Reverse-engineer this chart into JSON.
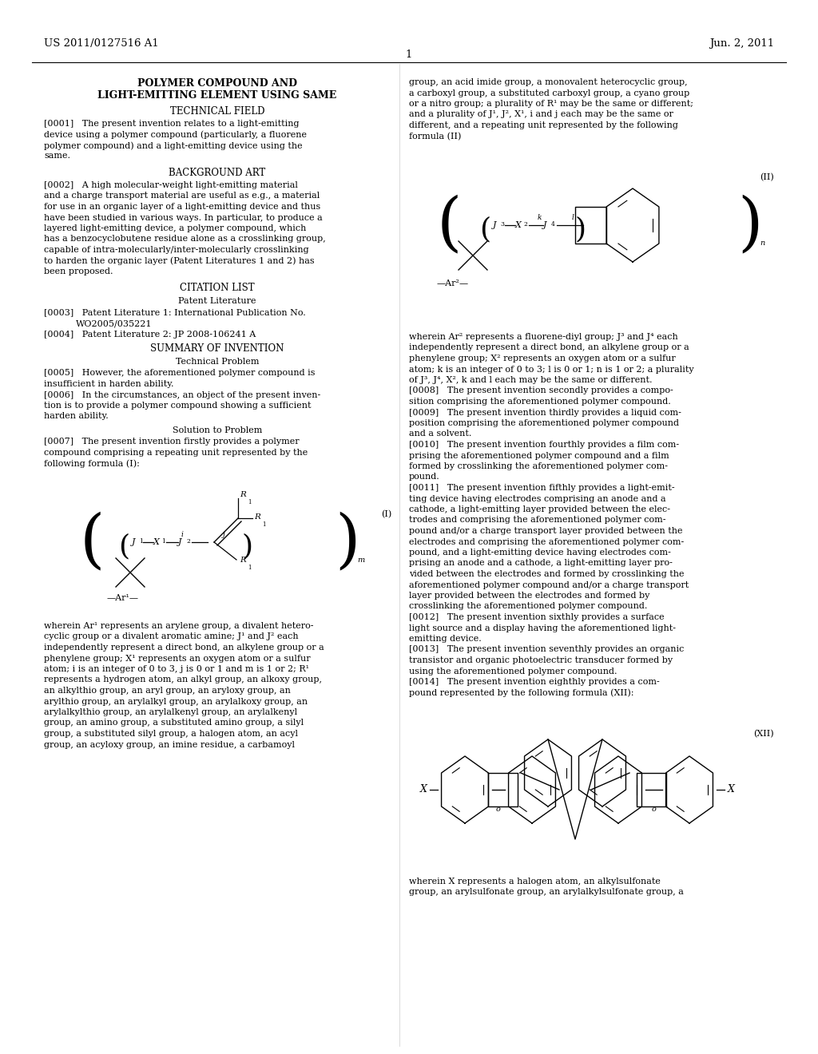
{
  "bg": "#ffffff",
  "header_left": "US 2011/0127516 A1",
  "header_right": "Jun. 2, 2011",
  "page_num": "1",
  "title1": "POLYMER COMPOUND AND",
  "title2": "LIGHT-EMITTING ELEMENT USING SAME"
}
